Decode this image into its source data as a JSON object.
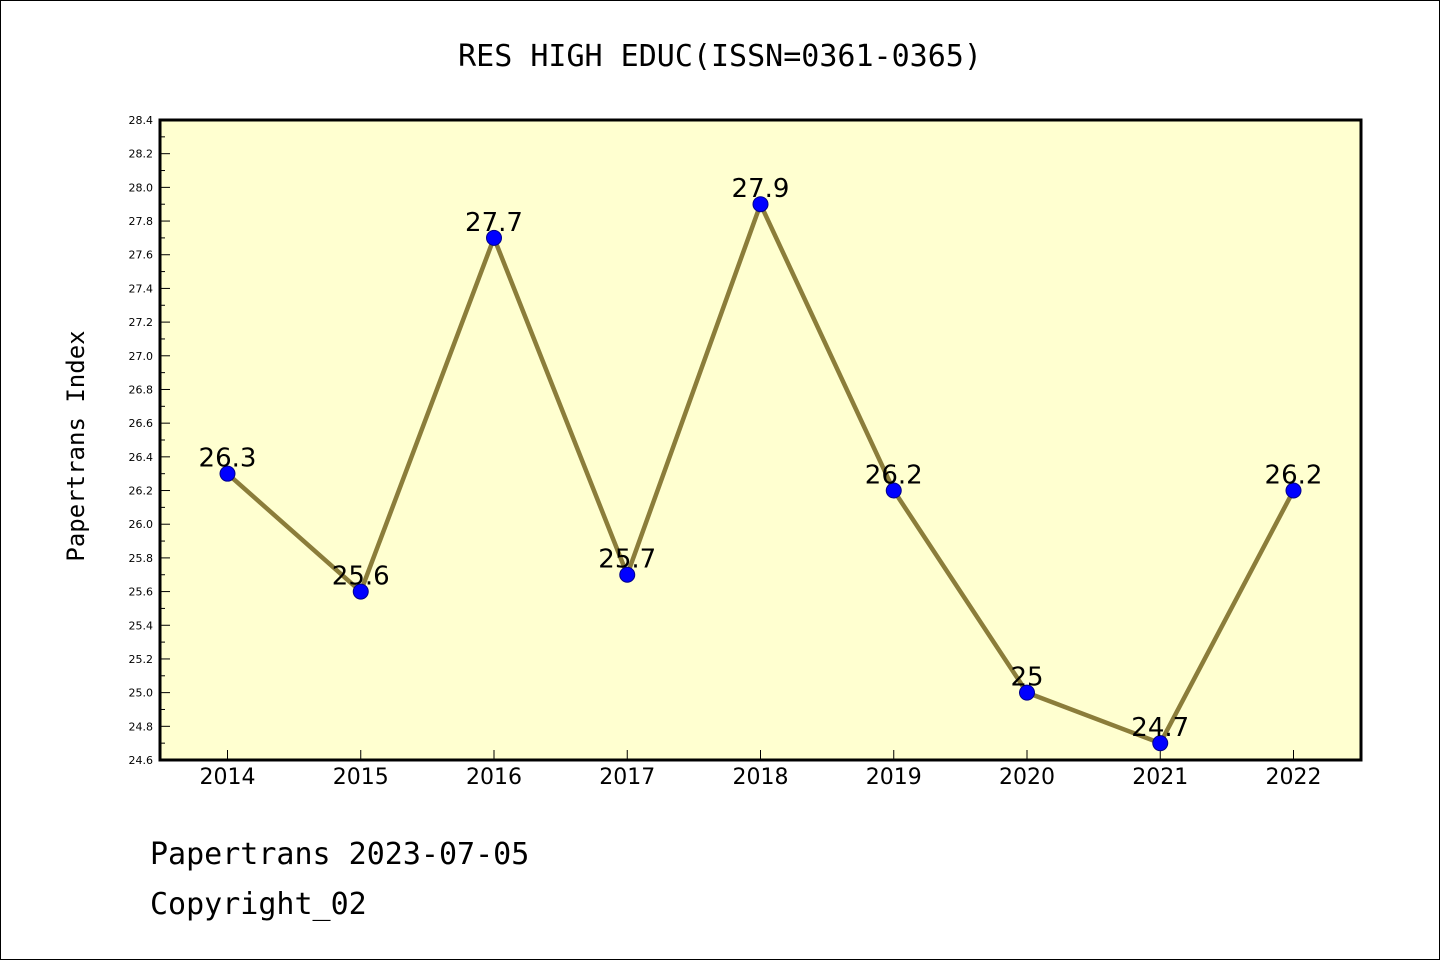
{
  "colors": {
    "plot_background": "#ffffd0",
    "line": "#8b7d3a",
    "marker": "#0000ff",
    "marker_edge": "#00008b"
  },
  "chart_data": {
    "type": "line",
    "title": "RES HIGH EDUC(ISSN=0361-0365)",
    "xlabel": "",
    "ylabel": "Papertrans Index",
    "categories": [
      "2014",
      "2015",
      "2016",
      "2017",
      "2018",
      "2019",
      "2020",
      "2021",
      "2022"
    ],
    "series": [
      {
        "values": [
          26.3,
          25.6,
          27.7,
          25.7,
          27.9,
          26.2,
          25.0,
          24.7,
          26.2
        ],
        "labels": [
          "26.3",
          "25.6",
          "27.7",
          "25.7",
          "27.9",
          "26.2",
          "25",
          "24.7",
          "26.2"
        ]
      }
    ],
    "ylim": [
      24.6,
      28.4
    ],
    "yticks": [
      "24.6",
      "24.8",
      "25.0",
      "25.2",
      "25.4",
      "25.6",
      "25.8",
      "26.0",
      "26.2",
      "26.4",
      "26.6",
      "26.8",
      "27.0",
      "27.2",
      "27.4",
      "27.6",
      "27.8",
      "28.0",
      "28.2",
      "28.4"
    ],
    "grid": false,
    "legend": false
  },
  "footer": {
    "line1": "Papertrans 2023-07-05",
    "line2": "Copyright_02"
  }
}
